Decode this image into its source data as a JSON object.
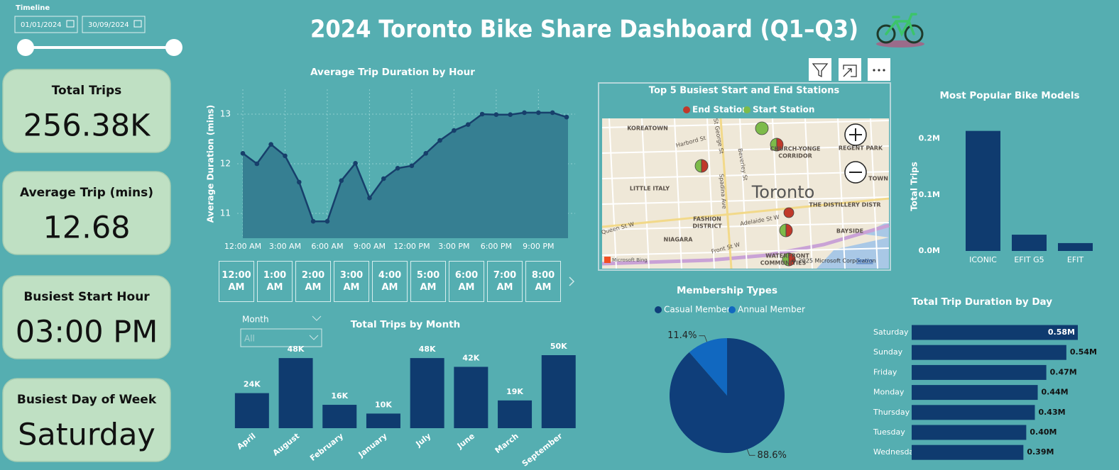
{
  "title": "2024 Toronto Bike Share Dashboard (Q1–Q3)",
  "timeline": {
    "label": "Timeline",
    "start": "01/01/2024",
    "end": "30/09/2024"
  },
  "kpis": [
    {
      "label": "Total Trips",
      "value": "256.38K"
    },
    {
      "label": "Average Trip (mins)",
      "value": "12.68"
    },
    {
      "label": "Busiest Start Hour",
      "value": "03:00 PM"
    },
    {
      "label": "Busiest Day of Week",
      "value": "Saturday"
    }
  ],
  "hour_slicer": [
    "12:00 AM",
    "1:00 AM",
    "2:00 AM",
    "3:00 AM",
    "4:00 AM",
    "5:00 AM",
    "6:00 AM",
    "7:00 AM",
    "8:00 AM"
  ],
  "month_slicer": {
    "label": "Month",
    "value": "All"
  },
  "map": {
    "title": "Top 5 Busiest Start and End Stations",
    "legend": [
      {
        "name": "End Station",
        "color": "#c0392b"
      },
      {
        "name": "Start Station",
        "color": "#7dbb4a"
      }
    ],
    "labels": [
      "KOREATOWN",
      "Harbord St",
      "CHURCH-YONGE",
      "CORRIDOR",
      "REGENT PARK",
      "LITTLE ITALY",
      "Toronto",
      "FASHION",
      "DISTRICT",
      "THE DISTILLERY DISTR",
      "NIAGARA",
      "BAYSIDE",
      "WATERFRONT",
      "COMMUNITIES",
      "Queen St W",
      "Front St W",
      "Adelaide St W",
      "Spadina Ave",
      "St George St",
      "Beverley St",
      "TOWN"
    ],
    "attribution": "© 2025 Microsoft Corporation",
    "terms": "Terms",
    "provider": "Microsoft Bing"
  },
  "chart_data": [
    {
      "type": "line",
      "title": "Average Trip Duration by Hour",
      "y_label": "Average Duration (mins)",
      "categories": [
        "12:00 AM",
        null,
        null,
        "3:00 AM",
        null,
        null,
        "6:00 AM",
        null,
        null,
        "9:00 AM",
        null,
        null,
        "12:00 PM",
        null,
        null,
        "3:00 PM",
        null,
        null,
        "6:00 PM",
        null,
        null,
        "9:00 PM",
        null,
        null
      ],
      "values": [
        12.21,
        12.0,
        12.39,
        12.16,
        11.63,
        10.84,
        10.84,
        11.66,
        12.01,
        11.31,
        11.7,
        11.91,
        11.96,
        12.21,
        12.47,
        12.67,
        12.79,
        13.0,
        12.99,
        12.99,
        13.03,
        13.03,
        13.03,
        12.94
      ],
      "color": "#173f6b",
      "ylim": [
        10.5,
        13.5
      ],
      "yticks": [
        11,
        12,
        13
      ],
      "grid": true
    },
    {
      "type": "bar",
      "title": "Total Trips by Month",
      "categories": [
        "April",
        "August",
        "February",
        "January",
        "July",
        "June",
        "March",
        "September"
      ],
      "values": [
        24000,
        48000,
        16000,
        10000,
        48000,
        42000,
        19000,
        50000
      ],
      "value_labels": [
        "24K",
        "48K",
        "16K",
        "10K",
        "48K",
        "42K",
        "19K",
        "50K"
      ],
      "color": "#0f3b6f"
    },
    {
      "type": "pie",
      "title": "Membership Types",
      "categories": [
        "Casual Member",
        "Annual Member"
      ],
      "values": [
        88.6,
        11.4
      ],
      "value_labels": [
        "88.6%",
        "11.4%"
      ],
      "colors": [
        "#0f3e7a",
        "#1168c0"
      ]
    },
    {
      "type": "bar",
      "title": "Most Popular Bike Models",
      "y_label": "Total Trips",
      "categories": [
        "ICONIC",
        "EFIT G5",
        "EFIT"
      ],
      "values": [
        214000,
        29000,
        14000
      ],
      "color": "#0f3b6f",
      "ylim": [
        0,
        230000
      ],
      "yticks": [
        {
          "value": 0,
          "label": "0.0M"
        },
        {
          "value": 100000,
          "label": "0.1M"
        },
        {
          "value": 200000,
          "label": "0.2M"
        }
      ]
    },
    {
      "type": "hbar",
      "title": "Total Trip Duration by Day",
      "categories": [
        "Saturday",
        "Sunday",
        "Friday",
        "Monday",
        "Thursday",
        "Tuesday",
        "Wednesday"
      ],
      "values": [
        580000,
        540000,
        470000,
        440000,
        430000,
        400000,
        390000
      ],
      "value_labels": [
        "0.58M",
        "0.54M",
        "0.47M",
        "0.44M",
        "0.43M",
        "0.40M",
        "0.39M"
      ],
      "color": "#0f3b6f"
    }
  ]
}
